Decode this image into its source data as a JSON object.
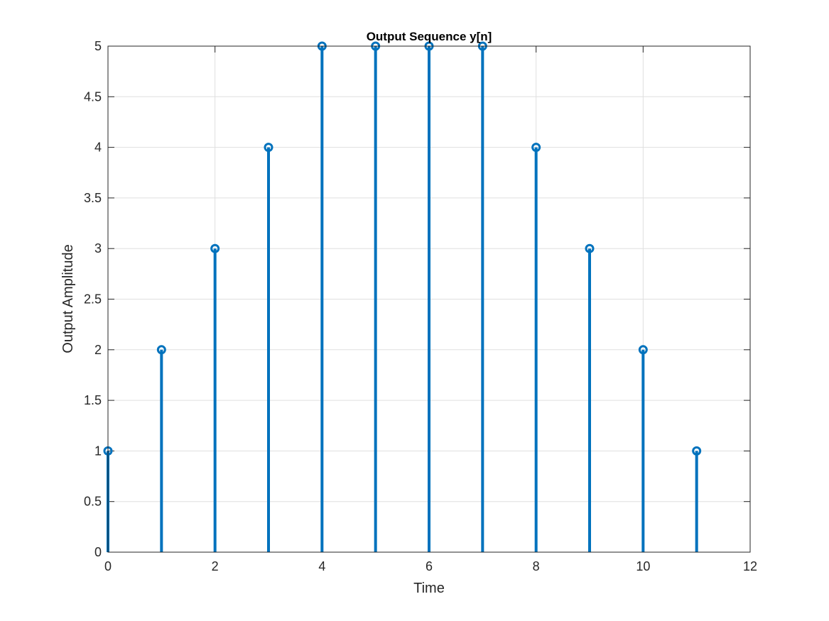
{
  "chart_data": {
    "type": "stem",
    "title": "Output Sequence y[n]",
    "xlabel": "Time",
    "ylabel": "Output Amplitude",
    "x": [
      0,
      1,
      2,
      3,
      4,
      5,
      6,
      7,
      8,
      9,
      10,
      11
    ],
    "values": [
      1,
      2,
      3,
      4,
      5,
      5,
      5,
      5,
      4,
      3,
      2,
      1
    ],
    "xlim": [
      0,
      12
    ],
    "ylim": [
      0,
      5
    ],
    "xticks": [
      "0",
      "2",
      "4",
      "6",
      "8",
      "10",
      "12"
    ],
    "yticks": [
      "0",
      "0.5",
      "1",
      "1.5",
      "2",
      "2.5",
      "3",
      "3.5",
      "4",
      "4.5",
      "5"
    ],
    "grid": true,
    "marker": "circle",
    "color": "#0072BD"
  }
}
